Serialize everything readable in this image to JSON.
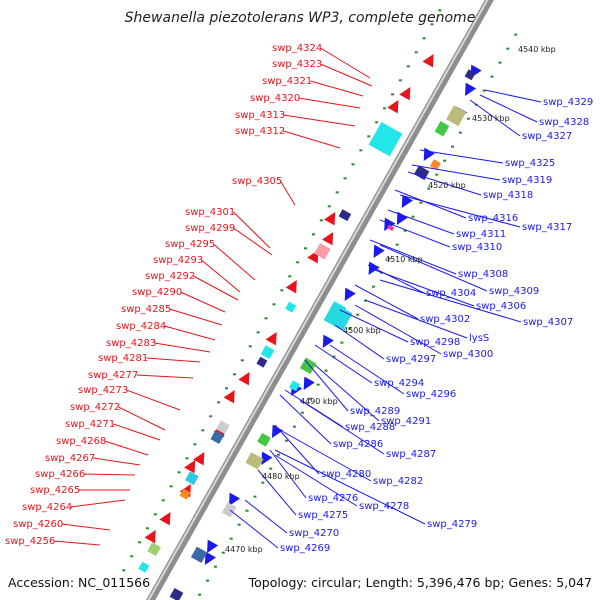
{
  "title": "Shewanella piezotolerans WP3, complete genome",
  "footer": {
    "accession": "Accession: NC_011566",
    "topology": "Topology: circular; Length: 5,396,476 bp; Genes: 5,047"
  },
  "colors": {
    "forward": "#e8141b",
    "reverse": "#1a1aee",
    "backbone": "#9a9a9a",
    "tick": "#2a8a2a"
  },
  "scale": [
    "4540 kbp",
    "4530 kbp",
    "4520 kbp",
    "4510 kbp",
    "4500 kbp",
    "4490 kbp",
    "4480 kbp",
    "4470 kbp"
  ],
  "forward_labels": [
    "swp_4324",
    "swp_4323",
    "swp_4321",
    "swp_4320",
    "swp_4313",
    "swp_4312",
    "swp_4305",
    "swp_4301",
    "swp_4299",
    "swp_4295",
    "swp_4293",
    "swp_4292",
    "swp_4290",
    "swp_4285",
    "swp_4284",
    "swp_4283",
    "swp_4281",
    "swp_4277",
    "swp_4273",
    "swp_4272",
    "swp_4271",
    "swp_4268",
    "swp_4267",
    "swp_4266",
    "swp_4265",
    "swp_4264",
    "swp_4260",
    "swp_4256"
  ],
  "reverse_labels": [
    "swp_4329",
    "swp_4328",
    "swp_4327",
    "swp_4325",
    "swp_4319",
    "swp_4318",
    "swp_4316",
    "swp_4317",
    "swp_4311",
    "swp_4310",
    "swp_4308",
    "swp_4309",
    "swp_4304",
    "swp_4306",
    "swp_4307",
    "swp_4302",
    "lysS",
    "swp_4300",
    "swp_4298",
    "swp_4297",
    "swp_4294",
    "swp_4296",
    "swp_4289",
    "swp_4291",
    "swp_4288",
    "swp_4286",
    "swp_4287",
    "swp_4280",
    "swp_4282",
    "swp_4276",
    "swp_4278",
    "swp_4275",
    "swp_4279",
    "swp_4270",
    "swp_4269"
  ]
}
